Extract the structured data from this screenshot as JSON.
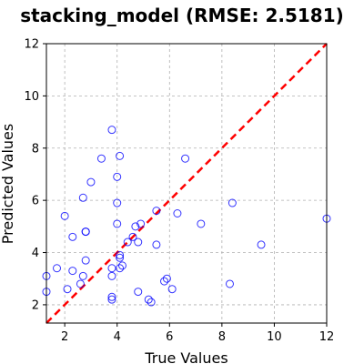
{
  "chart_data": {
    "type": "scatter",
    "title": "stacking_model (RMSE: 2.5181)",
    "xlabel": "True Values",
    "ylabel": "Predicted Values",
    "xlim": [
      1.3,
      12.0
    ],
    "ylim": [
      1.3,
      12.0
    ],
    "xticks": [
      2,
      4,
      6,
      8,
      10,
      12
    ],
    "yticks": [
      2,
      4,
      6,
      8,
      10,
      12
    ],
    "grid": true,
    "colors": {
      "points": "#0000ff",
      "reference_line": "#ff0000",
      "grid": "#b0b0b0"
    },
    "reference_line": {
      "style": "dashed",
      "from": [
        1.3,
        1.3
      ],
      "to": [
        12.0,
        12.0
      ]
    },
    "points": [
      {
        "x": 1.3,
        "y": 3.1
      },
      {
        "x": 1.3,
        "y": 2.5
      },
      {
        "x": 1.7,
        "y": 3.4
      },
      {
        "x": 2.0,
        "y": 5.4
      },
      {
        "x": 2.1,
        "y": 2.6
      },
      {
        "x": 2.3,
        "y": 4.6
      },
      {
        "x": 2.3,
        "y": 3.3
      },
      {
        "x": 2.6,
        "y": 2.8
      },
      {
        "x": 2.7,
        "y": 6.1
      },
      {
        "x": 2.7,
        "y": 3.1
      },
      {
        "x": 2.8,
        "y": 4.8
      },
      {
        "x": 2.8,
        "y": 4.8
      },
      {
        "x": 2.8,
        "y": 3.7
      },
      {
        "x": 3.0,
        "y": 6.7
      },
      {
        "x": 3.4,
        "y": 7.6
      },
      {
        "x": 3.8,
        "y": 8.7
      },
      {
        "x": 3.8,
        "y": 3.4
      },
      {
        "x": 3.8,
        "y": 3.1
      },
      {
        "x": 3.8,
        "y": 2.3
      },
      {
        "x": 3.8,
        "y": 2.2
      },
      {
        "x": 4.0,
        "y": 6.9
      },
      {
        "x": 4.0,
        "y": 5.9
      },
      {
        "x": 4.0,
        "y": 5.1
      },
      {
        "x": 4.1,
        "y": 7.7
      },
      {
        "x": 4.1,
        "y": 3.9
      },
      {
        "x": 4.1,
        "y": 3.8
      },
      {
        "x": 4.1,
        "y": 3.4
      },
      {
        "x": 4.2,
        "y": 3.5
      },
      {
        "x": 4.4,
        "y": 4.4
      },
      {
        "x": 4.6,
        "y": 4.6
      },
      {
        "x": 4.7,
        "y": 5.0
      },
      {
        "x": 4.8,
        "y": 4.4
      },
      {
        "x": 4.8,
        "y": 2.5
      },
      {
        "x": 4.9,
        "y": 5.1
      },
      {
        "x": 5.2,
        "y": 2.2
      },
      {
        "x": 5.3,
        "y": 2.1
      },
      {
        "x": 5.5,
        "y": 5.6
      },
      {
        "x": 5.5,
        "y": 4.3
      },
      {
        "x": 5.8,
        "y": 2.9
      },
      {
        "x": 5.9,
        "y": 3.0
      },
      {
        "x": 6.1,
        "y": 2.6
      },
      {
        "x": 6.3,
        "y": 5.5
      },
      {
        "x": 6.6,
        "y": 7.6
      },
      {
        "x": 7.2,
        "y": 5.1
      },
      {
        "x": 8.3,
        "y": 2.8
      },
      {
        "x": 8.4,
        "y": 5.9
      },
      {
        "x": 9.5,
        "y": 4.3
      },
      {
        "x": 12.0,
        "y": 5.3
      }
    ]
  }
}
